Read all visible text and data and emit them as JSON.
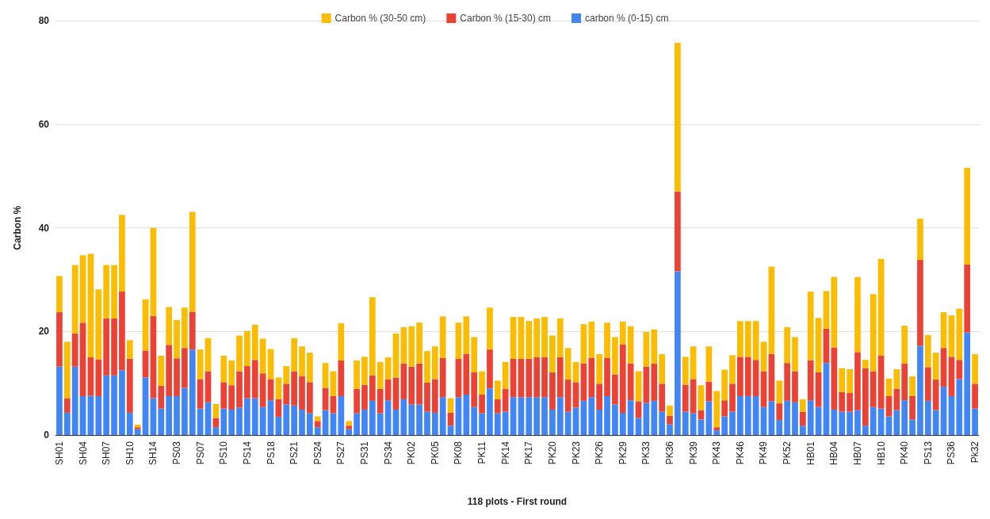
{
  "chart_data": {
    "type": "bar",
    "stacked": true,
    "xlabel": "118 plots - First round",
    "ylabel": "Carbon %",
    "categories": [
      "SH01",
      null,
      null,
      "SH04",
      null,
      null,
      "SH07",
      null,
      null,
      "SH10",
      null,
      null,
      "SH14",
      null,
      null,
      "PS03",
      null,
      null,
      "PS07",
      null,
      null,
      "PS10",
      null,
      null,
      "PS14",
      null,
      null,
      "PS18",
      null,
      null,
      "PS21",
      null,
      null,
      "PS24",
      null,
      null,
      "PS27",
      null,
      null,
      "PS31",
      null,
      null,
      "PS34",
      null,
      null,
      "PK02",
      null,
      null,
      "PK05",
      null,
      null,
      "PK08",
      null,
      null,
      "PK11",
      null,
      null,
      "PK14",
      null,
      null,
      "PK17",
      null,
      null,
      "PK20",
      null,
      null,
      "PK23",
      null,
      null,
      "PK26",
      null,
      null,
      "PK29",
      null,
      null,
      "PK33",
      null,
      null,
      "PK36",
      null,
      null,
      "PK39",
      null,
      null,
      "PK43",
      null,
      null,
      "PK46",
      null,
      null,
      "PK49",
      null,
      null,
      "PK52",
      null,
      null,
      "HB01",
      null,
      null,
      "HB04",
      null,
      null,
      "HB07",
      null,
      null,
      "HB10",
      null,
      null,
      "PK40",
      null,
      null,
      "PS13",
      null,
      null,
      "PS36",
      null,
      null,
      "Pk32"
    ],
    "series": [
      {
        "name": "carbon % (0-15) cm",
        "color": "#4285f4",
        "values": [
          13.2,
          4.3,
          13.2,
          7.5,
          7.6,
          7.5,
          11.5,
          11.5,
          12.5,
          4.3,
          1.1,
          11.1,
          7.1,
          5.1,
          7.5,
          7.5,
          9.1,
          16.5,
          5.1,
          6.3,
          1.5,
          5.1,
          4.9,
          5.3,
          7.1,
          7.1,
          5.4,
          6.7,
          3.5,
          5.9,
          5.7,
          4.9,
          4.2,
          1.5,
          4.8,
          4.2,
          7.5,
          1.1,
          4.2,
          4.9,
          6.6,
          4.2,
          6.7,
          4.9,
          6.9,
          5.9,
          5.9,
          4.5,
          4.3,
          7.3,
          1.8,
          7.3,
          7.8,
          5.4,
          4.2,
          9.0,
          4.2,
          4.5,
          7.3,
          7.3,
          7.3,
          7.3,
          7.3,
          4.9,
          7.3,
          4.5,
          5.3,
          6.6,
          7.3,
          4.9,
          7.5,
          5.9,
          4.3,
          6.7,
          3.3,
          6.2,
          6.6,
          4.5,
          2.1,
          31.6,
          4.5,
          4.2,
          3.0,
          6.5,
          0.9,
          3.6,
          4.5,
          7.5,
          7.5,
          7.5,
          5.4,
          6.5,
          2.9,
          6.6,
          6.3,
          1.8,
          6.7,
          5.4,
          13.9,
          4.9,
          4.5,
          4.5,
          4.8,
          1.8,
          5.4,
          5.1,
          3.6,
          4.8,
          6.7,
          3.0,
          17.2,
          6.6,
          4.8,
          9.3,
          7.5,
          10.8,
          19.8,
          5.1
        ]
      },
      {
        "name": "Carbon % (15-30) cm",
        "color": "#ea4335",
        "values": [
          10.5,
          2.8,
          6.4,
          14.2,
          7.4,
          7.1,
          11.0,
          11.0,
          15.2,
          10.4,
          0.4,
          5.2,
          15.9,
          4.4,
          9.9,
          7.3,
          7.7,
          7.3,
          5.7,
          6.0,
          1.8,
          5.1,
          4.7,
          7.0,
          6.2,
          7.4,
          6.5,
          4.1,
          3.4,
          4.0,
          6.6,
          6.5,
          6.0,
          1.2,
          4.3,
          3.3,
          6.9,
          0.7,
          4.7,
          4.8,
          4.9,
          4.7,
          4.0,
          6.2,
          6.9,
          7.3,
          7.9,
          5.6,
          6.5,
          7.6,
          2.5,
          7.4,
          7.9,
          6.7,
          3.6,
          7.5,
          2.7,
          4.4,
          7.4,
          7.4,
          7.4,
          7.7,
          7.7,
          7.2,
          7.7,
          6.2,
          4.9,
          7.2,
          7.6,
          5.0,
          7.4,
          5.8,
          13.2,
          7.1,
          3.2,
          7.0,
          7.2,
          5.4,
          1.6,
          15.4,
          5.2,
          6.6,
          1.8,
          3.8,
          0.6,
          3.1,
          5.4,
          7.6,
          7.6,
          7.0,
          6.9,
          9.1,
          3.2,
          7.3,
          6.0,
          2.7,
          7.7,
          6.7,
          6.6,
          12.0,
          3.8,
          3.6,
          11.2,
          11.1,
          6.9,
          10.2,
          3.9,
          4.1,
          7.1,
          4.5,
          16.6,
          6.5,
          5.9,
          7.5,
          7.6,
          3.7,
          13.1,
          4.8
        ]
      },
      {
        "name": "Carbon % (30-50 cm)",
        "color": "#fbbc04",
        "values": [
          7.0,
          10.9,
          13.2,
          13.0,
          20.0,
          13.5,
          10.3,
          10.3,
          14.8,
          3.6,
          0.5,
          9.9,
          17.0,
          5.8,
          7.3,
          7.4,
          7.8,
          19.3,
          5.7,
          6.4,
          2.7,
          5.1,
          4.8,
          6.9,
          6.8,
          6.8,
          6.7,
          5.8,
          4.2,
          3.4,
          6.4,
          5.7,
          5.7,
          0.9,
          4.8,
          4.8,
          7.2,
          0.9,
          5.5,
          5.4,
          15.1,
          5.2,
          4.3,
          8.5,
          7.0,
          7.8,
          7.9,
          6.1,
          6.3,
          8.0,
          2.8,
          7.0,
          7.2,
          6.8,
          4.5,
          8.1,
          3.6,
          5.2,
          8.1,
          8.1,
          7.3,
          7.5,
          7.8,
          7.1,
          7.5,
          6.1,
          3.9,
          7.6,
          7.0,
          5.7,
          6.8,
          7.2,
          4.4,
          7.2,
          5.8,
          6.7,
          6.6,
          5.7,
          2.0,
          28.7,
          5.4,
          6.3,
          4.8,
          6.8,
          7.0,
          5.9,
          5.5,
          6.9,
          6.9,
          7.5,
          5.7,
          16.9,
          4.4,
          6.9,
          6.6,
          2.4,
          13.3,
          10.5,
          7.3,
          13.6,
          4.6,
          4.6,
          14.5,
          1.6,
          14.9,
          18.7,
          3.4,
          3.8,
          7.3,
          3.8,
          8.0,
          6.2,
          5.2,
          6.9,
          8.0,
          9.9,
          18.7,
          5.7
        ]
      }
    ],
    "ylim": [
      0,
      80
    ],
    "yticks": [
      0,
      20,
      40,
      60,
      80
    ],
    "grid": "y",
    "legend": "top"
  }
}
